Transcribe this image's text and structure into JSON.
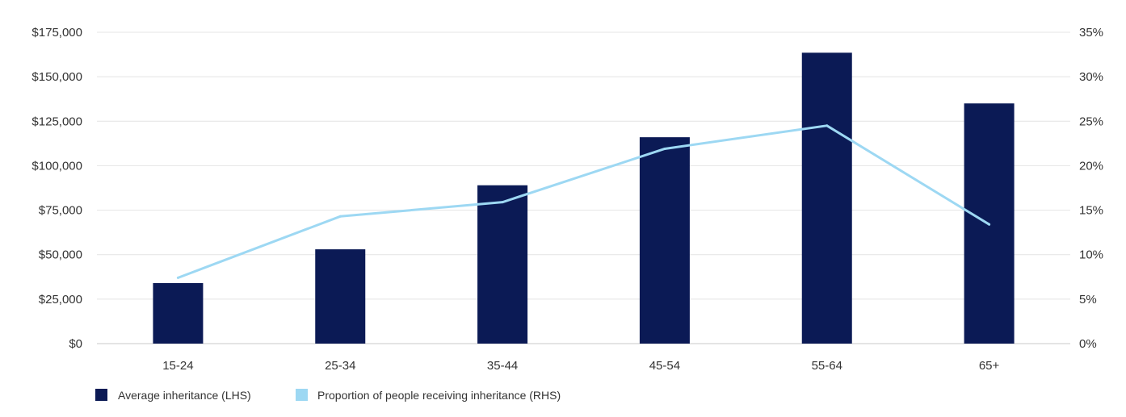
{
  "chart_data": {
    "type": "bar",
    "categories": [
      "15-24",
      "25-34",
      "35-44",
      "45-54",
      "55-64",
      "65+"
    ],
    "series": [
      {
        "name": "Average inheritance (LHS)",
        "type": "bar",
        "axis": "left",
        "color": "#0b1a55",
        "values": [
          34000,
          53000,
          89000,
          116000,
          163500,
          135000
        ]
      },
      {
        "name": "Proportion of people receiving inheritance (RHS)",
        "type": "line",
        "axis": "right",
        "color": "#9dd8f3",
        "values": [
          7.4,
          14.3,
          15.9,
          21.9,
          24.5,
          13.4
        ]
      }
    ],
    "ylim_left": [
      0,
      175000
    ],
    "yticks_left": [
      0,
      25000,
      50000,
      75000,
      100000,
      125000,
      150000,
      175000
    ],
    "yticklabels_left": [
      "$0",
      "$25,000",
      "$50,000",
      "$75,000",
      "$100,000",
      "$125,000",
      "$150,000",
      "$175,000"
    ],
    "ylim_right": [
      0,
      35
    ],
    "yticks_right": [
      0,
      5,
      10,
      15,
      20,
      25,
      30,
      35
    ],
    "yticklabels_right": [
      "0%",
      "5%",
      "10%",
      "15%",
      "20%",
      "25%",
      "30%",
      "35%"
    ],
    "grid": true,
    "legend_position": "bottom-left",
    "title": "",
    "xlabel": "",
    "ylabel": ""
  }
}
